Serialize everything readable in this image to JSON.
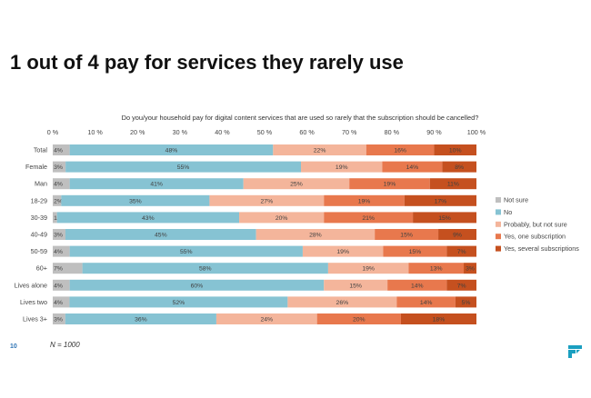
{
  "page": {
    "title": "1 out of 4 pay for services they rarely use",
    "page_number": "10",
    "sample_note": "N = 1000",
    "logo_icon": "brand-logo-icon"
  },
  "chart_data": {
    "type": "bar",
    "orientation": "horizontal",
    "stacked": "100%",
    "title": "Do you/your household pay for digital content services that are used so rarely that the subscription should be cancelled?",
    "x_ticks": [
      "0 %",
      "10 %",
      "20 %",
      "30 %",
      "40 %",
      "50 %",
      "60 %",
      "70 %",
      "80 %",
      "90 %",
      "100 %"
    ],
    "xlim": [
      0,
      100
    ],
    "grid": false,
    "legend_position": "right",
    "categories": [
      "Total",
      "Female",
      "Man",
      "18-29",
      "30-39",
      "40-49",
      "50-59",
      "60+",
      "Lives alone",
      "Lives two",
      "Lives 3+"
    ],
    "series": [
      {
        "name": "Not sure",
        "color": "#bfbfbf",
        "values": [
          4,
          3,
          4,
          2,
          1,
          3,
          4,
          7,
          4,
          4,
          3
        ],
        "labels": [
          "4%",
          "3%",
          "4%",
          "2%",
          "1%",
          "3%",
          "4%",
          "7%",
          "4%",
          "4%",
          "3%"
        ]
      },
      {
        "name": "No",
        "color": "#86c3d3",
        "values": [
          48,
          55,
          41,
          35,
          43,
          45,
          55,
          58,
          60,
          52,
          36
        ],
        "labels": [
          "48%",
          "55%",
          "41%",
          "35%",
          "43%",
          "45%",
          "55%",
          "58%",
          "60%",
          "52%",
          "36%"
        ]
      },
      {
        "name": "Probably, but not sure",
        "color": "#f4b59b",
        "values": [
          22,
          19,
          25,
          27,
          20,
          28,
          19,
          19,
          15,
          26,
          24
        ],
        "labels": [
          "22%",
          "19%",
          "25%",
          "27%",
          "20%",
          "28%",
          "19%",
          "19%",
          "15%",
          "26%",
          "24%"
        ]
      },
      {
        "name": "Yes, one subscription",
        "color": "#e8784d",
        "values": [
          16,
          14,
          19,
          19,
          21,
          15,
          15,
          13,
          14,
          14,
          20
        ],
        "labels": [
          "16%",
          "14%",
          "19%",
          "19%",
          "21%",
          "15%",
          "15%",
          "13%",
          "14%",
          "14%",
          "20%"
        ]
      },
      {
        "name": "Yes, several subscriptions",
        "color": "#c5501f",
        "values": [
          10,
          8,
          11,
          17,
          15,
          9,
          7,
          3,
          7,
          5,
          18
        ],
        "labels": [
          "10%",
          "8%",
          "11%",
          "17%",
          "15%",
          "9%",
          "7%",
          "3%",
          "7%",
          "5%",
          "18%"
        ]
      }
    ]
  }
}
